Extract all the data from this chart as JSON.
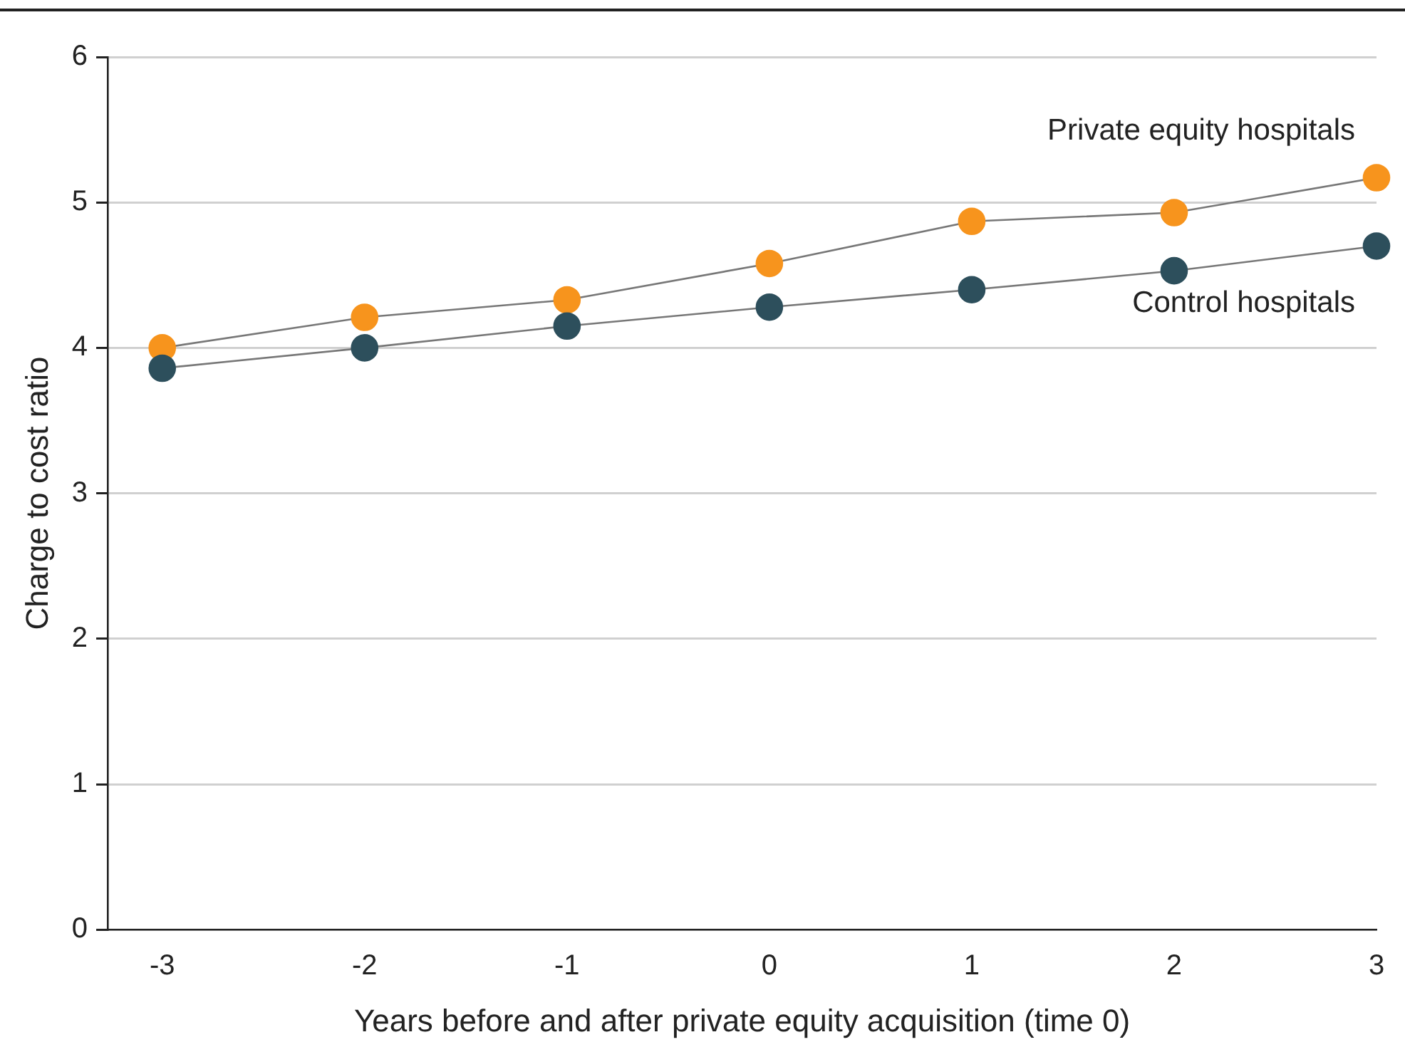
{
  "chart_data": {
    "type": "line",
    "xlabel": "Years before and after private equity acquisition (time 0)",
    "ylabel": "Charge to cost ratio",
    "x": [
      -3,
      -2,
      -1,
      0,
      1,
      2,
      3
    ],
    "series": [
      {
        "name": "Private equity hospitals",
        "color": "#f7941d",
        "values": [
          4.0,
          4.21,
          4.33,
          4.58,
          4.87,
          4.93,
          5.17
        ]
      },
      {
        "name": "Control hospitals",
        "color": "#2d4f5c",
        "values": [
          3.86,
          4.0,
          4.15,
          4.28,
          4.4,
          4.53,
          4.7
        ]
      }
    ],
    "xlim": [
      -3.27,
      3
    ],
    "xticks": [
      -3,
      -2,
      -1,
      0,
      1,
      2,
      3
    ],
    "ylim": [
      0,
      6
    ],
    "yticks": [
      0,
      1,
      2,
      3,
      4,
      5,
      6
    ],
    "grid": "y",
    "marker": "circle",
    "line_style": "solid"
  }
}
